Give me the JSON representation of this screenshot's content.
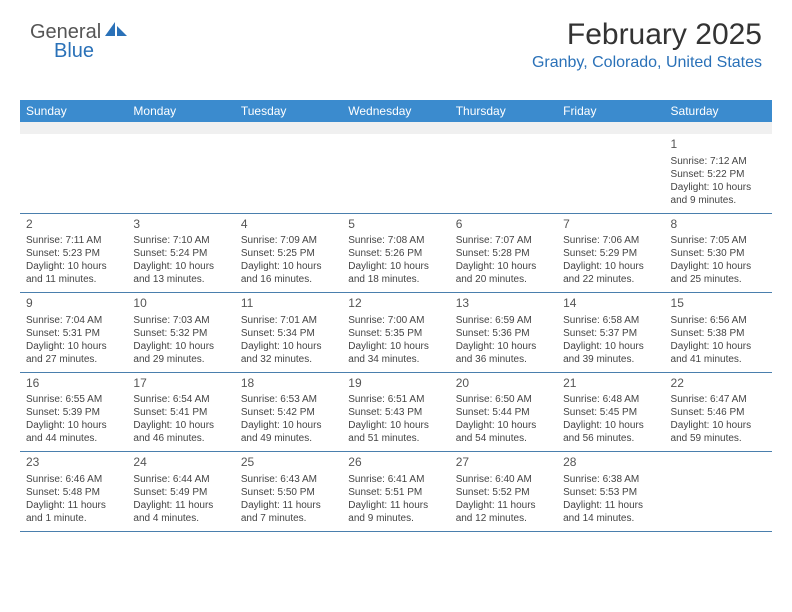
{
  "logo": {
    "text1": "General",
    "text2": "Blue"
  },
  "header": {
    "title": "February 2025",
    "location": "Granby, Colorado, United States"
  },
  "colors": {
    "header_bg": "#3b8bce",
    "header_text": "#ffffff",
    "location_text": "#2a71b8",
    "stripe": "#f0f0f0",
    "border": "#4a7fad",
    "body_text": "#444444"
  },
  "dow": [
    "Sunday",
    "Monday",
    "Tuesday",
    "Wednesday",
    "Thursday",
    "Friday",
    "Saturday"
  ],
  "weeks": [
    [
      null,
      null,
      null,
      null,
      null,
      null,
      {
        "n": "1",
        "sr": "Sunrise: 7:12 AM",
        "ss": "Sunset: 5:22 PM",
        "d1": "Daylight: 10 hours",
        "d2": "and 9 minutes."
      }
    ],
    [
      {
        "n": "2",
        "sr": "Sunrise: 7:11 AM",
        "ss": "Sunset: 5:23 PM",
        "d1": "Daylight: 10 hours",
        "d2": "and 11 minutes."
      },
      {
        "n": "3",
        "sr": "Sunrise: 7:10 AM",
        "ss": "Sunset: 5:24 PM",
        "d1": "Daylight: 10 hours",
        "d2": "and 13 minutes."
      },
      {
        "n": "4",
        "sr": "Sunrise: 7:09 AM",
        "ss": "Sunset: 5:25 PM",
        "d1": "Daylight: 10 hours",
        "d2": "and 16 minutes."
      },
      {
        "n": "5",
        "sr": "Sunrise: 7:08 AM",
        "ss": "Sunset: 5:26 PM",
        "d1": "Daylight: 10 hours",
        "d2": "and 18 minutes."
      },
      {
        "n": "6",
        "sr": "Sunrise: 7:07 AM",
        "ss": "Sunset: 5:28 PM",
        "d1": "Daylight: 10 hours",
        "d2": "and 20 minutes."
      },
      {
        "n": "7",
        "sr": "Sunrise: 7:06 AM",
        "ss": "Sunset: 5:29 PM",
        "d1": "Daylight: 10 hours",
        "d2": "and 22 minutes."
      },
      {
        "n": "8",
        "sr": "Sunrise: 7:05 AM",
        "ss": "Sunset: 5:30 PM",
        "d1": "Daylight: 10 hours",
        "d2": "and 25 minutes."
      }
    ],
    [
      {
        "n": "9",
        "sr": "Sunrise: 7:04 AM",
        "ss": "Sunset: 5:31 PM",
        "d1": "Daylight: 10 hours",
        "d2": "and 27 minutes."
      },
      {
        "n": "10",
        "sr": "Sunrise: 7:03 AM",
        "ss": "Sunset: 5:32 PM",
        "d1": "Daylight: 10 hours",
        "d2": "and 29 minutes."
      },
      {
        "n": "11",
        "sr": "Sunrise: 7:01 AM",
        "ss": "Sunset: 5:34 PM",
        "d1": "Daylight: 10 hours",
        "d2": "and 32 minutes."
      },
      {
        "n": "12",
        "sr": "Sunrise: 7:00 AM",
        "ss": "Sunset: 5:35 PM",
        "d1": "Daylight: 10 hours",
        "d2": "and 34 minutes."
      },
      {
        "n": "13",
        "sr": "Sunrise: 6:59 AM",
        "ss": "Sunset: 5:36 PM",
        "d1": "Daylight: 10 hours",
        "d2": "and 36 minutes."
      },
      {
        "n": "14",
        "sr": "Sunrise: 6:58 AM",
        "ss": "Sunset: 5:37 PM",
        "d1": "Daylight: 10 hours",
        "d2": "and 39 minutes."
      },
      {
        "n": "15",
        "sr": "Sunrise: 6:56 AM",
        "ss": "Sunset: 5:38 PM",
        "d1": "Daylight: 10 hours",
        "d2": "and 41 minutes."
      }
    ],
    [
      {
        "n": "16",
        "sr": "Sunrise: 6:55 AM",
        "ss": "Sunset: 5:39 PM",
        "d1": "Daylight: 10 hours",
        "d2": "and 44 minutes."
      },
      {
        "n": "17",
        "sr": "Sunrise: 6:54 AM",
        "ss": "Sunset: 5:41 PM",
        "d1": "Daylight: 10 hours",
        "d2": "and 46 minutes."
      },
      {
        "n": "18",
        "sr": "Sunrise: 6:53 AM",
        "ss": "Sunset: 5:42 PM",
        "d1": "Daylight: 10 hours",
        "d2": "and 49 minutes."
      },
      {
        "n": "19",
        "sr": "Sunrise: 6:51 AM",
        "ss": "Sunset: 5:43 PM",
        "d1": "Daylight: 10 hours",
        "d2": "and 51 minutes."
      },
      {
        "n": "20",
        "sr": "Sunrise: 6:50 AM",
        "ss": "Sunset: 5:44 PM",
        "d1": "Daylight: 10 hours",
        "d2": "and 54 minutes."
      },
      {
        "n": "21",
        "sr": "Sunrise: 6:48 AM",
        "ss": "Sunset: 5:45 PM",
        "d1": "Daylight: 10 hours",
        "d2": "and 56 minutes."
      },
      {
        "n": "22",
        "sr": "Sunrise: 6:47 AM",
        "ss": "Sunset: 5:46 PM",
        "d1": "Daylight: 10 hours",
        "d2": "and 59 minutes."
      }
    ],
    [
      {
        "n": "23",
        "sr": "Sunrise: 6:46 AM",
        "ss": "Sunset: 5:48 PM",
        "d1": "Daylight: 11 hours",
        "d2": "and 1 minute."
      },
      {
        "n": "24",
        "sr": "Sunrise: 6:44 AM",
        "ss": "Sunset: 5:49 PM",
        "d1": "Daylight: 11 hours",
        "d2": "and 4 minutes."
      },
      {
        "n": "25",
        "sr": "Sunrise: 6:43 AM",
        "ss": "Sunset: 5:50 PM",
        "d1": "Daylight: 11 hours",
        "d2": "and 7 minutes."
      },
      {
        "n": "26",
        "sr": "Sunrise: 6:41 AM",
        "ss": "Sunset: 5:51 PM",
        "d1": "Daylight: 11 hours",
        "d2": "and 9 minutes."
      },
      {
        "n": "27",
        "sr": "Sunrise: 6:40 AM",
        "ss": "Sunset: 5:52 PM",
        "d1": "Daylight: 11 hours",
        "d2": "and 12 minutes."
      },
      {
        "n": "28",
        "sr": "Sunrise: 6:38 AM",
        "ss": "Sunset: 5:53 PM",
        "d1": "Daylight: 11 hours",
        "d2": "and 14 minutes."
      },
      null
    ]
  ]
}
